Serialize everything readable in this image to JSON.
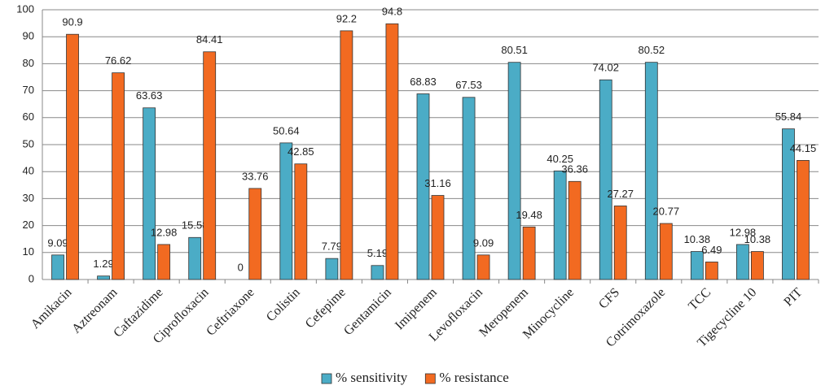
{
  "chart_data": {
    "type": "bar",
    "categories": [
      "Amikacin",
      "Aztreonam",
      "Caftazidime",
      "Ciprofloxacin",
      "Ceftriaxone",
      "Colistin",
      "Cefepime",
      "Gentamicin",
      "Imipenem",
      "Levofloxacin",
      "Meropenem",
      "Minocycline",
      "CFS",
      "Cotrimoxazole",
      "TCC",
      "Tigecycline 10",
      "PIT"
    ],
    "series": [
      {
        "name": "% sensitivity",
        "color": "#4bacc6",
        "values": [
          9.09,
          1.29,
          63.63,
          15.58,
          0,
          50.64,
          7.79,
          5.19,
          68.83,
          67.53,
          80.51,
          40.25,
          74.02,
          80.52,
          10.38,
          12.98,
          55.84
        ]
      },
      {
        "name": "% resistance",
        "color": "#f26a21",
        "values": [
          90.9,
          76.62,
          12.98,
          84.41,
          33.76,
          42.85,
          92.2,
          94.8,
          31.16,
          9.09,
          19.48,
          36.36,
          27.27,
          20.77,
          6.49,
          10.38,
          44.15
        ]
      }
    ],
    "ylim": [
      0,
      100
    ],
    "yticks": [
      0,
      10,
      20,
      30,
      40,
      50,
      60,
      70,
      80,
      90,
      100
    ],
    "grid": true,
    "legend": "bottom"
  }
}
